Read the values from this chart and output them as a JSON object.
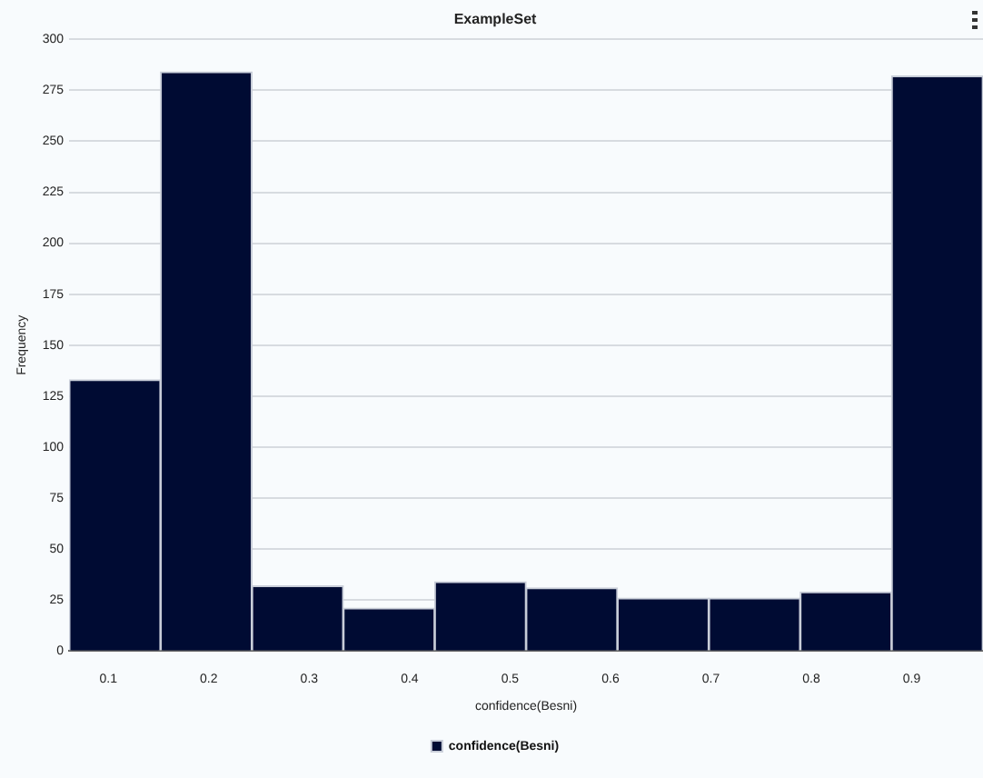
{
  "chart_data": {
    "type": "histogram",
    "title": "ExampleSet",
    "xlabel": "confidence(Besni)",
    "ylabel": "Frequency",
    "bins": [
      0.061,
      0.152,
      0.243,
      0.334,
      0.425,
      0.516,
      0.607,
      0.698,
      0.789,
      0.88,
      0.971
    ],
    "series": [
      {
        "name": "confidence(Besni)",
        "color": "#000b33",
        "values": [
          133,
          284,
          32,
          21,
          34,
          31,
          26,
          26,
          29,
          282
        ]
      }
    ],
    "xlim": [
      0.061,
      0.971
    ],
    "xticks": [
      0.1,
      0.2,
      0.3,
      0.4,
      0.5,
      0.6,
      0.7,
      0.8,
      0.9
    ],
    "ylim": [
      0,
      300
    ],
    "yticks": [
      0,
      25,
      50,
      75,
      100,
      125,
      150,
      175,
      200,
      225,
      250,
      275,
      300
    ],
    "grid": "y",
    "legend": "bottom"
  }
}
